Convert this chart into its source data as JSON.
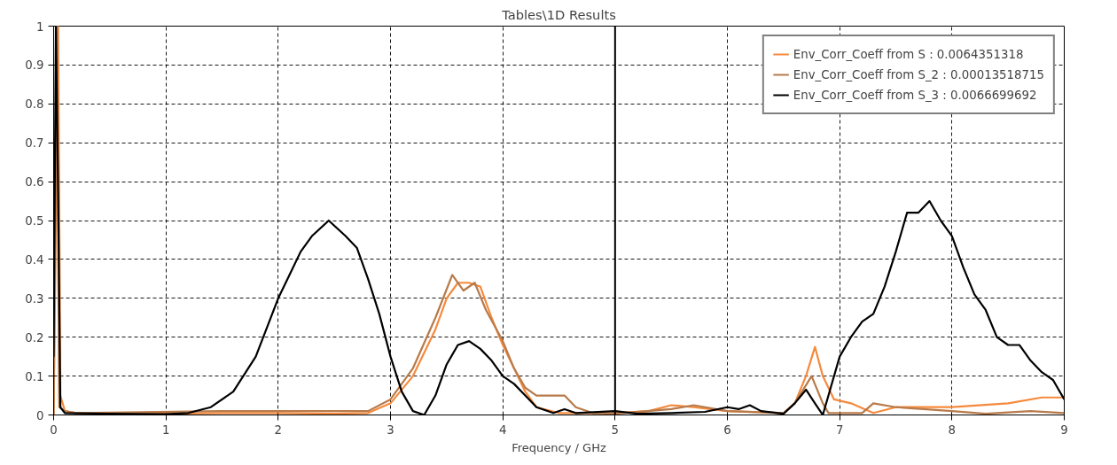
{
  "chart_data": {
    "type": "line",
    "title": "Tables\\1D Results",
    "xlabel": "Frequency / GHz",
    "xlim": [
      0,
      9
    ],
    "ylim": [
      0,
      1
    ],
    "xticks": [
      0,
      1,
      2,
      3,
      4,
      {
        "value": 5,
        "label": null
      },
      6,
      7,
      8,
      9
    ],
    "yticks": [
      0,
      0.1,
      0.2,
      0.3,
      0.4,
      0.5,
      0.6,
      0.7,
      0.8,
      0.9,
      1
    ],
    "grid": true,
    "legend": "top right",
    "line_style": "solid",
    "marker": "none",
    "ref_lines": [
      {
        "axis": "x",
        "value": 5,
        "label": "5",
        "color": "#000000"
      }
    ],
    "series": [
      {
        "name": "Env_Corr_Coeff from S : 0.0064351318",
        "color": "#f58a3c",
        "x": [
          0,
          0.04,
          0.06,
          0.1,
          0.2,
          1.0,
          1.5,
          2.0,
          2.5,
          2.8,
          3.0,
          3.2,
          3.4,
          3.5,
          3.6,
          3.7,
          3.8,
          3.9,
          4.0,
          4.1,
          4.2,
          4.3,
          4.5,
          5.0,
          5.3,
          5.5,
          5.7,
          6.0,
          6.5,
          6.6,
          6.7,
          6.78,
          6.85,
          6.95,
          7.1,
          7.3,
          7.5,
          8.0,
          8.5,
          8.8,
          9.0
        ],
        "values": [
          0,
          1.0,
          0.05,
          0.01,
          0.005,
          0.003,
          0.005,
          0.005,
          0.003,
          0.005,
          0.03,
          0.1,
          0.22,
          0.3,
          0.34,
          0.34,
          0.33,
          0.25,
          0.18,
          0.12,
          0.06,
          0.02,
          0.005,
          0.005,
          0.01,
          0.025,
          0.02,
          0.01,
          0.005,
          0.03,
          0.1,
          0.175,
          0.1,
          0.04,
          0.03,
          0.005,
          0.02,
          0.02,
          0.03,
          0.045,
          0.045
        ]
      },
      {
        "name": "Env_Corr_Coeff from S_2 : 0.00013518715",
        "color": "#b87a4a",
        "x": [
          0,
          0.03,
          0.05,
          0.1,
          0.2,
          1.5,
          2.0,
          2.8,
          3.0,
          3.2,
          3.4,
          3.55,
          3.65,
          3.75,
          3.85,
          4.0,
          4.1,
          4.2,
          4.3,
          4.4,
          4.55,
          4.65,
          4.8,
          5.0,
          5.5,
          5.7,
          6.0,
          6.5,
          6.6,
          6.75,
          6.85,
          6.9,
          7.2,
          7.3,
          7.5,
          8.0,
          8.3,
          8.7,
          9.0
        ],
        "values": [
          0,
          1.0,
          0.02,
          0.01,
          0.005,
          0.01,
          0.01,
          0.01,
          0.04,
          0.12,
          0.25,
          0.36,
          0.32,
          0.34,
          0.27,
          0.19,
          0.12,
          0.07,
          0.05,
          0.05,
          0.05,
          0.02,
          0.005,
          0.003,
          0.015,
          0.025,
          0.01,
          0.005,
          0.03,
          0.1,
          0.03,
          0.005,
          0.005,
          0.03,
          0.02,
          0.01,
          0.003,
          0.01,
          0.005
        ]
      },
      {
        "name": "Env_Corr_Coeff from S_3 : 0.0066699692",
        "color": "#000000",
        "x": [
          0,
          0.02,
          0.04,
          0.06,
          0.1,
          0.5,
          1.0,
          1.2,
          1.4,
          1.6,
          1.8,
          2.0,
          2.1,
          2.2,
          2.3,
          2.45,
          2.6,
          2.7,
          2.8,
          2.9,
          3.0,
          3.1,
          3.2,
          3.3,
          3.4,
          3.5,
          3.6,
          3.7,
          3.8,
          3.9,
          4.0,
          4.1,
          4.2,
          4.3,
          4.45,
          4.55,
          4.65,
          5.0,
          5.2,
          5.5,
          5.8,
          6.0,
          6.1,
          6.2,
          6.3,
          6.5,
          6.6,
          6.7,
          6.78,
          6.85,
          6.9,
          7.0,
          7.1,
          7.2,
          7.3,
          7.4,
          7.5,
          7.6,
          7.7,
          7.8,
          7.9,
          8.0,
          8.1,
          8.2,
          8.3,
          8.4,
          8.5,
          8.6,
          8.7,
          8.8,
          8.9,
          9.0
        ],
        "values": [
          0.15,
          1.0,
          0.57,
          0.02,
          0.005,
          0.003,
          0.002,
          0.005,
          0.02,
          0.06,
          0.15,
          0.3,
          0.36,
          0.42,
          0.46,
          0.5,
          0.46,
          0.43,
          0.35,
          0.26,
          0.15,
          0.06,
          0.01,
          0,
          0.05,
          0.13,
          0.18,
          0.19,
          0.17,
          0.14,
          0.1,
          0.08,
          0.05,
          0.02,
          0.005,
          0.015,
          0.005,
          0.01,
          0.003,
          0.005,
          0.008,
          0.02,
          0.015,
          0.025,
          0.01,
          0.003,
          0.03,
          0.065,
          0.03,
          0,
          0.05,
          0.15,
          0.2,
          0.24,
          0.26,
          0.33,
          0.42,
          0.52,
          0.52,
          0.55,
          0.5,
          0.46,
          0.38,
          0.31,
          0.27,
          0.2,
          0.18,
          0.18,
          0.14,
          0.11,
          0.09,
          0.04
        ]
      }
    ]
  }
}
